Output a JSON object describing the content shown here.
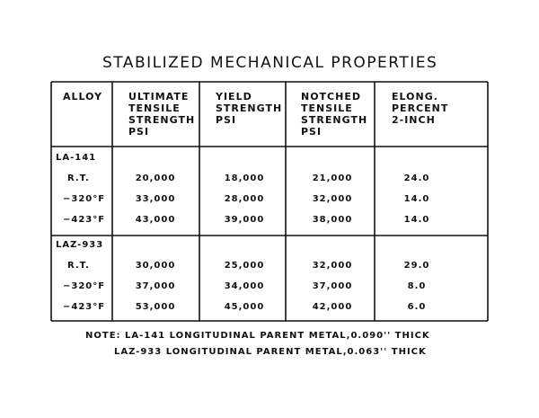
{
  "title": "STABILIZED MECHANICAL PROPERTIES",
  "table": {
    "header": [
      [
        "ALLOY"
      ],
      [
        "ULTIMATE",
        "TENSILE",
        "STRENGTH",
        "PSI"
      ],
      [
        "YIELD",
        "STRENGTH",
        "PSI"
      ],
      [
        "NOTCHED",
        "TENSILE",
        "STRENGTH",
        "PSI"
      ],
      [
        "ELONG.",
        "PERCENT",
        "2-INCH"
      ]
    ],
    "groups": [
      {
        "name": "LA-141",
        "rows": [
          [
            "R.T.",
            "20,000",
            "18,000",
            "21,000",
            "24.0"
          ],
          [
            "−320°F",
            "33,000",
            "28,000",
            "32,000",
            "14.0"
          ],
          [
            "−423°F",
            "43,000",
            "39,000",
            "38,000",
            "14.0"
          ]
        ]
      },
      {
        "name": "LAZ-933",
        "rows": [
          [
            "R.T.",
            "30,000",
            "25,000",
            "32,000",
            "29.0"
          ],
          [
            "−320°F",
            "37,000",
            "34,000",
            "37,000",
            "8.0"
          ],
          [
            "−423°F",
            "53,000",
            "45,000",
            "42,000",
            "6.0"
          ]
        ]
      }
    ]
  },
  "notes": [
    "NOTE: LA-141 LONGITUDINAL PARENT METAL,0.090'' THICK",
    "LAZ-933 LONGITUDINAL PARENT METAL,0.063'' THICK"
  ]
}
